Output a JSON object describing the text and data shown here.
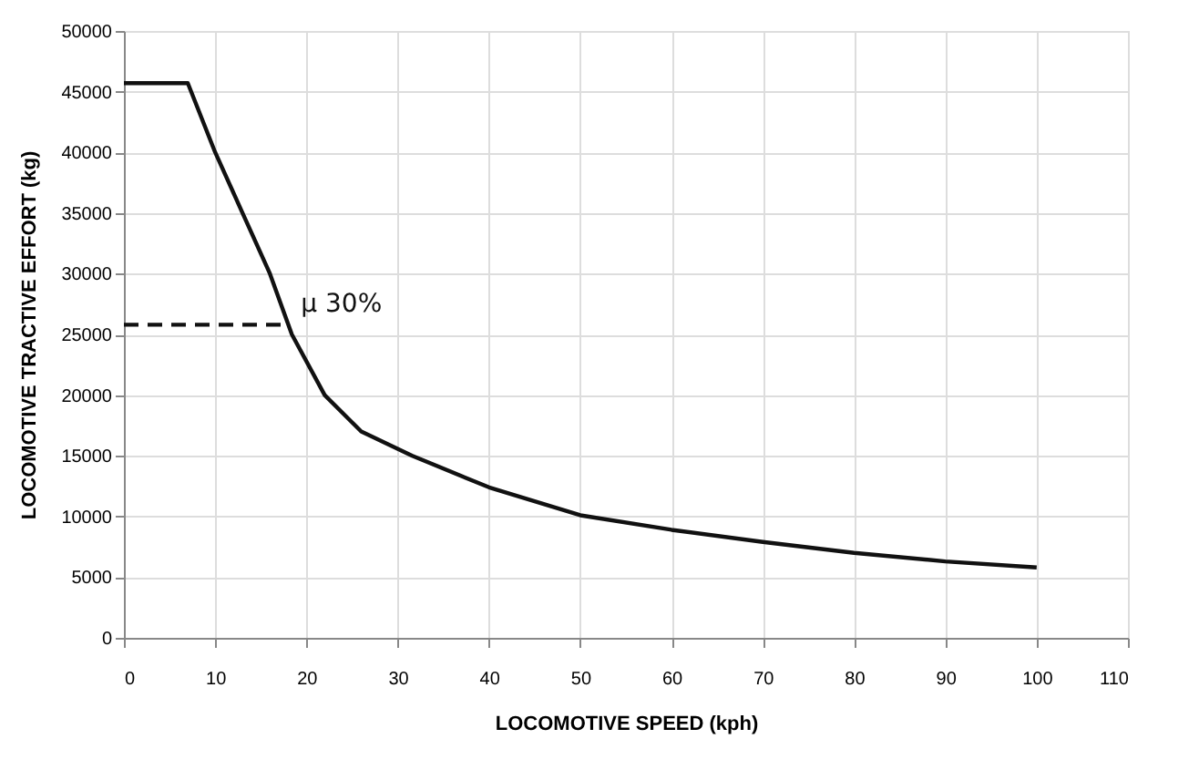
{
  "chart_data": {
    "type": "line",
    "xlabel": "LOCOMOTIVE  SPEED (kph)",
    "ylabel": "LOCOMOTIVE  TRACTIVE  EFFORT (kg)",
    "series": [
      {
        "color": "#111111",
        "line_style": "solid",
        "x": [
          0,
          7,
          10,
          13,
          16,
          18.4,
          22,
          26,
          31.6,
          40,
          50,
          60,
          70,
          80,
          90,
          100
        ],
        "values": [
          45700,
          45700,
          40000,
          35000,
          30000,
          25000,
          20000,
          17000,
          15000,
          12400,
          10100,
          8900,
          7900,
          7000,
          6300,
          5800
        ]
      },
      {
        "name": "μ 30%",
        "color": "#111111",
        "line_style": "dashed",
        "x": [
          0,
          17.8
        ],
        "values": [
          25800,
          25800
        ]
      }
    ],
    "xlim": [
      0,
      110
    ],
    "xticks": [
      0,
      10,
      20,
      30,
      40,
      50,
      60,
      70,
      80,
      90,
      100,
      110
    ],
    "ylim": [
      0,
      50000
    ],
    "yticks": [
      0,
      5000,
      10000,
      15000,
      20000,
      25000,
      30000,
      35000,
      40000,
      45000,
      50000
    ],
    "grid": true,
    "marker": "none"
  }
}
